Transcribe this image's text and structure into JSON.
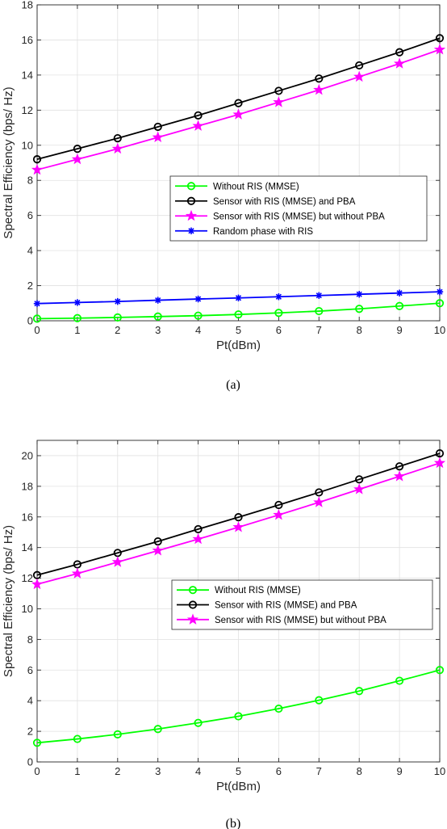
{
  "chart_data": [
    {
      "type": "line",
      "xlabel": "Pt(dBm)",
      "ylabel": "Spectral Efficiency (bps/ Hz)",
      "caption": "(a)",
      "x": [
        0,
        1,
        2,
        3,
        4,
        5,
        6,
        7,
        8,
        9,
        10
      ],
      "xlim": [
        0,
        10
      ],
      "ylim": [
        0,
        18
      ],
      "xticks": [
        "0",
        "1",
        "2",
        "3",
        "4",
        "5",
        "6",
        "7",
        "8",
        "9",
        "10"
      ],
      "yticks": [
        "0",
        "2",
        "4",
        "6",
        "8",
        "10",
        "12",
        "14",
        "16",
        "18"
      ],
      "grid": true,
      "legend_position": "center-right",
      "series": [
        {
          "name": "Without RIS (MMSE)",
          "color": "#00ff00",
          "marker": "circle",
          "values": [
            0.12,
            0.15,
            0.19,
            0.24,
            0.29,
            0.36,
            0.45,
            0.55,
            0.68,
            0.84,
            1.0
          ]
        },
        {
          "name": "Sensor with RIS (MMSE) and PBA",
          "color": "#000000",
          "marker": "circle",
          "values": [
            9.2,
            9.8,
            10.4,
            11.05,
            11.7,
            12.4,
            13.1,
            13.8,
            14.55,
            15.3,
            16.1
          ]
        },
        {
          "name": "Sensor with RIS (MMSE) but without PBA",
          "color": "#ff00ff",
          "marker": "star",
          "values": [
            8.6,
            9.2,
            9.8,
            10.45,
            11.1,
            11.75,
            12.45,
            13.15,
            13.9,
            14.65,
            15.45
          ]
        },
        {
          "name": "Random phase with RIS",
          "color": "#0000ff",
          "marker": "asterisk",
          "values": [
            0.98,
            1.04,
            1.1,
            1.17,
            1.24,
            1.3,
            1.37,
            1.44,
            1.51,
            1.58,
            1.65
          ]
        }
      ]
    },
    {
      "type": "line",
      "xlabel": "Pt(dBm)",
      "ylabel": "Spectral Efficiency (bps/ Hz)",
      "caption": "(b)",
      "x": [
        0,
        1,
        2,
        3,
        4,
        5,
        6,
        7,
        8,
        9,
        10
      ],
      "xlim": [
        0,
        10
      ],
      "ylim": [
        0,
        21
      ],
      "xticks": [
        "0",
        "1",
        "2",
        "3",
        "4",
        "5",
        "6",
        "7",
        "8",
        "9",
        "10"
      ],
      "yticks": [
        "0",
        "2",
        "4",
        "6",
        "8",
        "10",
        "12",
        "14",
        "16",
        "18",
        "20"
      ],
      "grid": true,
      "legend_position": "center-right",
      "series": [
        {
          "name": "Without RIS (MMSE)",
          "color": "#00ff00",
          "marker": "circle",
          "values": [
            1.25,
            1.5,
            1.8,
            2.15,
            2.55,
            2.98,
            3.48,
            4.03,
            4.63,
            5.3,
            6.0
          ]
        },
        {
          "name": "Sensor with RIS (MMSE) and PBA",
          "color": "#000000",
          "marker": "circle",
          "values": [
            12.2,
            12.9,
            13.65,
            14.4,
            15.2,
            15.98,
            16.78,
            17.6,
            18.45,
            19.3,
            20.15
          ]
        },
        {
          "name": "Sensor with RIS (MMSE) but without PBA",
          "color": "#ff00ff",
          "marker": "star",
          "values": [
            11.6,
            12.3,
            13.05,
            13.8,
            14.55,
            15.33,
            16.13,
            16.95,
            17.8,
            18.65,
            19.52
          ]
        }
      ]
    }
  ]
}
